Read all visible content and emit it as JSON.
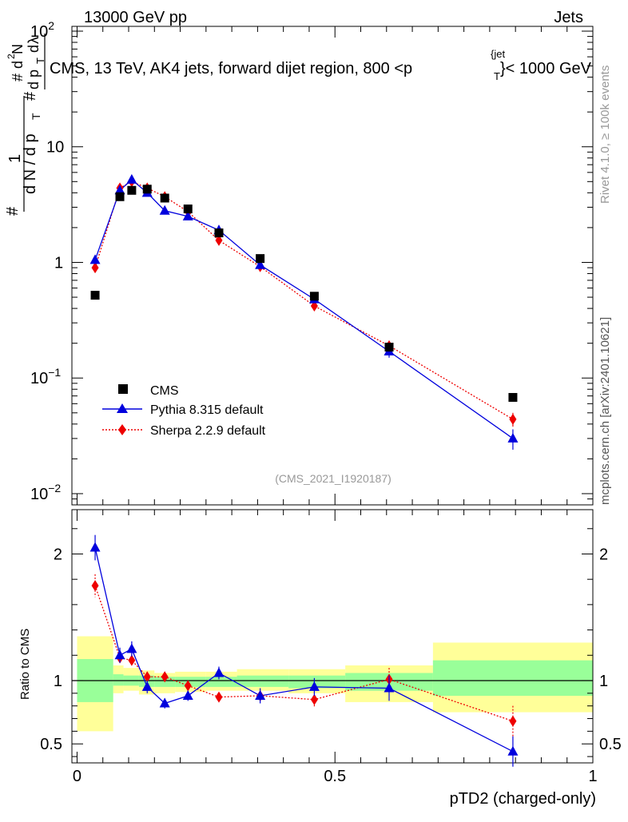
{
  "header": {
    "left": "13000 GeV pp",
    "right": "Jets"
  },
  "side": {
    "rivet": "Rivet 4.1.0, ≥ 100k events",
    "mcplots": "mcplots.cern.ch [arXiv:2401.10621]"
  },
  "title": "CMS, 13 TeV, AK4 jets, forward dijet region, 800 <p",
  "title_sup": "{jet",
  "title_sub": "T",
  "title_end": "}< 1000 GeV",
  "ylabel_main": "#  1/(dN/dp_T #)  d²N/(dp_T dλ)",
  "watermark": "(CMS_2021_I1920187)",
  "colors": {
    "cms": "#000000",
    "pythia": "#0000dd",
    "sherpa": "#ee0000",
    "band_outer": "#ffff99",
    "band_inner": "#99ff99"
  },
  "chart_data": [
    {
      "type": "scatter",
      "scale": "log",
      "ylim": [
        0.008,
        110
      ],
      "xlim": [
        -0.01,
        1.0
      ],
      "yticks": [
        {
          "v": 100,
          "m": "10",
          "e": "2"
        },
        {
          "v": 10,
          "m": "10",
          "e": ""
        },
        {
          "v": 1,
          "m": "1",
          "e": ""
        },
        {
          "v": 0.1,
          "m": "10",
          "e": "−1"
        },
        {
          "v": 0.01,
          "m": "10",
          "e": "−2"
        }
      ],
      "series": [
        {
          "name": "CMS",
          "x": [
            0.035,
            0.083,
            0.106,
            0.136,
            0.17,
            0.215,
            0.275,
            0.355,
            0.46,
            0.605,
            0.845
          ],
          "y": [
            0.52,
            3.7,
            4.2,
            4.3,
            3.6,
            2.9,
            1.8,
            1.08,
            0.51,
            0.185,
            0.068
          ]
        },
        {
          "name": "Pythia 8.315 default",
          "x": [
            0.035,
            0.083,
            0.106,
            0.136,
            0.17,
            0.215,
            0.275,
            0.355,
            0.46,
            0.605,
            0.845
          ],
          "y": [
            1.05,
            4.2,
            5.2,
            4.0,
            2.8,
            2.5,
            1.9,
            0.95,
            0.48,
            0.17,
            0.03
          ],
          "err": [
            0.08,
            0.3,
            0.3,
            0.2,
            0.15,
            0.1,
            0.08,
            0.05,
            0.03,
            0.02,
            0.006
          ]
        },
        {
          "name": "Sherpa 2.2.9 default",
          "x": [
            0.035,
            0.083,
            0.106,
            0.136,
            0.17,
            0.215,
            0.275,
            0.355,
            0.46,
            0.605,
            0.845
          ],
          "y": [
            0.9,
            4.4,
            5.0,
            4.4,
            3.7,
            2.75,
            1.55,
            0.92,
            0.42,
            0.19,
            0.044
          ],
          "err": [
            0.06,
            0.25,
            0.3,
            0.2,
            0.15,
            0.1,
            0.08,
            0.04,
            0.03,
            0.012,
            0.006
          ]
        }
      ]
    },
    {
      "type": "scatter",
      "ylabel": "Ratio to CMS",
      "ylim": [
        0.35,
        2.35
      ],
      "xlabel": "pTD2 (charged-only)",
      "xticks": [
        0,
        0.5,
        1
      ],
      "xtick_labels": [
        "0",
        "0.5",
        "1"
      ],
      "yticks": [
        0.5,
        1,
        2
      ],
      "ytick_labels": [
        "0.5",
        "1",
        "2"
      ],
      "bands": [
        {
          "x0": 0.0,
          "x1": 0.07,
          "lo_outer": 0.6,
          "hi_outer": 1.35,
          "lo_inner": 0.83,
          "hi_inner": 1.17
        },
        {
          "x0": 0.07,
          "x1": 0.09,
          "lo_outer": 0.9,
          "hi_outer": 1.12,
          "lo_inner": 0.96,
          "hi_inner": 1.05
        },
        {
          "x0": 0.09,
          "x1": 0.12,
          "lo_outer": 0.92,
          "hi_outer": 1.1,
          "lo_inner": 0.96,
          "hi_inner": 1.04
        },
        {
          "x0": 0.12,
          "x1": 0.15,
          "lo_outer": 0.89,
          "hi_outer": 1.08,
          "lo_inner": 0.95,
          "hi_inner": 1.04
        },
        {
          "x0": 0.15,
          "x1": 0.19,
          "lo_outer": 0.9,
          "hi_outer": 1.06,
          "lo_inner": 0.95,
          "hi_inner": 1.03
        },
        {
          "x0": 0.19,
          "x1": 0.25,
          "lo_outer": 0.91,
          "hi_outer": 1.07,
          "lo_inner": 0.95,
          "hi_inner": 1.03
        },
        {
          "x0": 0.25,
          "x1": 0.31,
          "lo_outer": 0.92,
          "hi_outer": 1.07,
          "lo_inner": 0.95,
          "hi_inner": 1.03
        },
        {
          "x0": 0.31,
          "x1": 0.41,
          "lo_outer": 0.92,
          "hi_outer": 1.09,
          "lo_inner": 0.95,
          "hi_inner": 1.04
        },
        {
          "x0": 0.41,
          "x1": 0.52,
          "lo_outer": 0.9,
          "hi_outer": 1.09,
          "lo_inner": 0.94,
          "hi_inner": 1.04
        },
        {
          "x0": 0.52,
          "x1": 0.69,
          "lo_outer": 0.83,
          "hi_outer": 1.12,
          "lo_inner": 0.92,
          "hi_inner": 1.06
        },
        {
          "x0": 0.69,
          "x1": 1.0,
          "lo_outer": 0.75,
          "hi_outer": 1.3,
          "lo_inner": 0.88,
          "hi_inner": 1.16
        }
      ],
      "series": [
        {
          "name": "Pythia 8.315 default",
          "x": [
            0.035,
            0.083,
            0.106,
            0.136,
            0.17,
            0.215,
            0.275,
            0.355,
            0.46,
            0.605,
            0.845
          ],
          "y": [
            2.05,
            1.2,
            1.25,
            0.95,
            0.82,
            0.88,
            1.06,
            0.88,
            0.95,
            0.94,
            0.44
          ],
          "err": [
            0.1,
            0.06,
            0.06,
            0.05,
            0.04,
            0.04,
            0.05,
            0.06,
            0.07,
            0.1,
            0.12
          ]
        },
        {
          "name": "Sherpa 2.2.9 default",
          "x": [
            0.035,
            0.083,
            0.106,
            0.136,
            0.17,
            0.215,
            0.275,
            0.355,
            0.46,
            0.605,
            0.845
          ],
          "y": [
            1.75,
            1.18,
            1.16,
            1.03,
            1.03,
            0.96,
            0.87,
            0.88,
            0.85,
            1.01,
            0.68
          ],
          "err": [
            0.09,
            0.05,
            0.05,
            0.04,
            0.04,
            0.03,
            0.03,
            0.04,
            0.06,
            0.09,
            0.12
          ]
        }
      ]
    }
  ]
}
